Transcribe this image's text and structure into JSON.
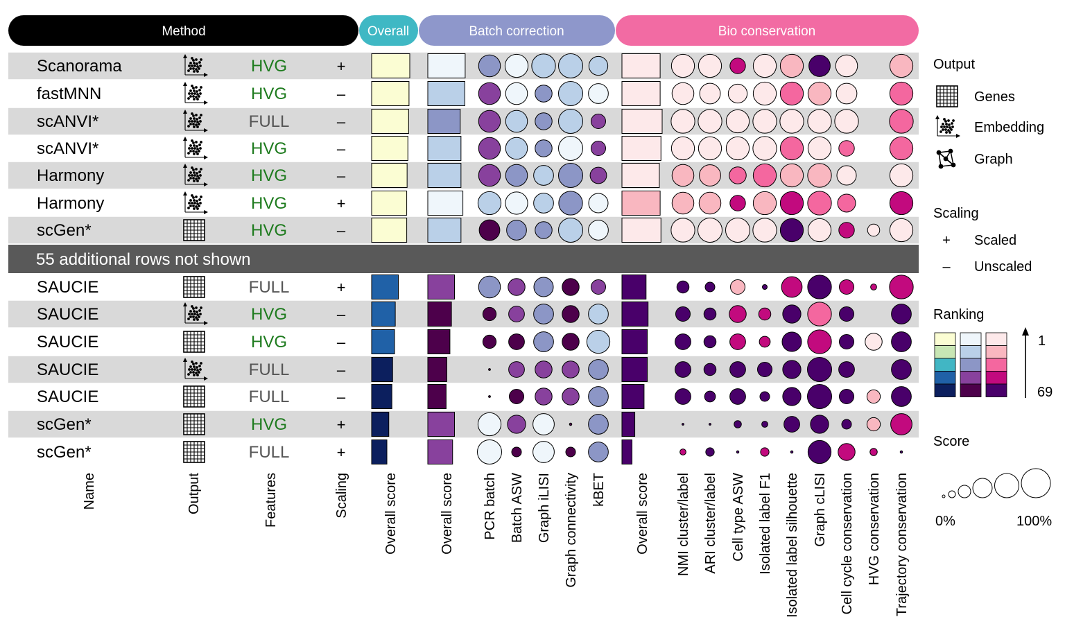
{
  "headers": {
    "method": "Method",
    "overall": "Overall",
    "batch": "Batch correction",
    "bio": "Bio conservation"
  },
  "hidden_rows_label": "55 additional rows not shown",
  "colors": {
    "method_header": "#000000",
    "overall_header": "#3fb8c4",
    "batch_header": "#8e97cb",
    "bio_header": "#f26ba3",
    "row_shade": "#d9d9d9",
    "divider": "#595959",
    "hvg_text": "#1e7b1e",
    "full_text": "#555555",
    "overall_scale": [
      "#fbfdd3",
      "#c8e6b4",
      "#41b6c4",
      "#2061a7",
      "#0c1f5e"
    ],
    "batch_scale": [
      "#eff6fb",
      "#bad0e8",
      "#8c96c6",
      "#88419d",
      "#4d004b"
    ],
    "bio_scale": [
      "#fde9ea",
      "#f9b7c0",
      "#f4679f",
      "#c20a7e",
      "#49006a"
    ]
  },
  "columns": [
    {
      "key": "name",
      "label": "Name"
    },
    {
      "key": "output",
      "label": "Output"
    },
    {
      "key": "features",
      "label": "Features"
    },
    {
      "key": "scaling",
      "label": "Scaling"
    },
    {
      "key": "overall",
      "label": "Overall score"
    },
    {
      "key": "batch_overall",
      "label": "Overall score"
    },
    {
      "key": "pcr_batch",
      "label": "PCR batch"
    },
    {
      "key": "batch_asw",
      "label": "Batch ASW"
    },
    {
      "key": "graph_ilisi",
      "label": "Graph iLISI"
    },
    {
      "key": "graph_connectivity",
      "label": "Graph connectivity"
    },
    {
      "key": "kbet",
      "label": "kBET"
    },
    {
      "key": "bio_overall",
      "label": "Overall score"
    },
    {
      "key": "nmi",
      "label": "NMI cluster/label"
    },
    {
      "key": "ari",
      "label": "ARI cluster/label"
    },
    {
      "key": "cell_type_asw",
      "label": "Cell type ASW"
    },
    {
      "key": "iso_f1",
      "label": "Isolated label F1"
    },
    {
      "key": "iso_sil",
      "label": "Isolated label silhouette"
    },
    {
      "key": "graph_clisi",
      "label": "Graph cLISI"
    },
    {
      "key": "cell_cycle",
      "label": "Cell cycle conservation"
    },
    {
      "key": "hvg_cons",
      "label": "HVG conservation"
    },
    {
      "key": "trajectory",
      "label": "Trajectory conservation"
    }
  ],
  "legend": {
    "output_title": "Output",
    "output_items": [
      {
        "icon": "genes-icon",
        "label": "Genes"
      },
      {
        "icon": "embedding-icon",
        "label": "Embedding"
      },
      {
        "icon": "graph-icon",
        "label": "Graph"
      }
    ],
    "scaling_title": "Scaling",
    "scaling_items": [
      {
        "symbol": "+",
        "label": "Scaled"
      },
      {
        "symbol": "–",
        "label": "Unscaled"
      }
    ],
    "ranking_title": "Ranking",
    "ranking_top": "1",
    "ranking_bottom": "69",
    "score_title": "Score",
    "score_min": "0%",
    "score_max": "100%"
  },
  "chart_data": {
    "type": "table",
    "score_unit": "fraction of maximum (circle size / bar length)",
    "color_encoding": "rank level 0 (best, rank 1) to 4 (worst, rank 69)",
    "rows": [
      {
        "name": "Scanorama",
        "output": "embedding",
        "features": "HVG",
        "scaling": "+",
        "overall": [
          1.0,
          0
        ],
        "batch_overall": [
          0.98,
          0
        ],
        "batch": [
          [
            0.9,
            2
          ],
          [
            0.95,
            0
          ],
          [
            0.98,
            1
          ],
          [
            1.0,
            1
          ],
          [
            0.78,
            1
          ]
        ],
        "bio_overall": [
          0.95,
          0
        ],
        "bio": [
          [
            0.95,
            0
          ],
          [
            0.95,
            0
          ],
          [
            0.64,
            3
          ],
          [
            0.95,
            0
          ],
          [
            0.95,
            1
          ],
          [
            0.88,
            4
          ],
          [
            0.9,
            0
          ],
          null,
          [
            0.95,
            1
          ]
        ]
      },
      {
        "name": "fastMNN",
        "output": "embedding",
        "features": "HVG",
        "scaling": "–",
        "overall": [
          0.98,
          0
        ],
        "batch_overall": [
          0.97,
          1
        ],
        "batch": [
          [
            0.9,
            3
          ],
          [
            0.9,
            0
          ],
          [
            0.7,
            2
          ],
          [
            1.0,
            1
          ],
          [
            0.82,
            0
          ]
        ],
        "bio_overall": [
          0.95,
          0
        ],
        "bio": [
          [
            0.9,
            0
          ],
          [
            0.85,
            0
          ],
          [
            0.78,
            0
          ],
          [
            0.95,
            0
          ],
          [
            0.95,
            2
          ],
          [
            0.95,
            1
          ],
          [
            0.85,
            0
          ],
          null,
          [
            0.95,
            2
          ]
        ]
      },
      {
        "name": "scANVI*",
        "output": "embedding",
        "features": "FULL",
        "scaling": "–",
        "overall": [
          0.97,
          0
        ],
        "batch_overall": [
          0.85,
          2
        ],
        "batch": [
          [
            0.9,
            3
          ],
          [
            0.9,
            1
          ],
          [
            0.7,
            2
          ],
          [
            1.0,
            1
          ],
          [
            0.6,
            3
          ]
        ],
        "bio_overall": [
          1.0,
          0
        ],
        "bio": [
          [
            0.98,
            0
          ],
          [
            0.98,
            0
          ],
          [
            0.95,
            0
          ],
          [
            0.98,
            0
          ],
          [
            0.98,
            0
          ],
          [
            0.98,
            0
          ],
          [
            0.98,
            0
          ],
          null,
          [
            0.98,
            2
          ]
        ]
      },
      {
        "name": "scANVI*",
        "output": "embedding",
        "features": "HVG",
        "scaling": "–",
        "overall": [
          0.95,
          0
        ],
        "batch_overall": [
          0.87,
          1
        ],
        "batch": [
          [
            0.9,
            3
          ],
          [
            0.9,
            1
          ],
          [
            0.7,
            2
          ],
          [
            1.0,
            0
          ],
          [
            0.6,
            3
          ]
        ],
        "bio_overall": [
          0.97,
          0
        ],
        "bio": [
          [
            0.95,
            0
          ],
          [
            0.95,
            0
          ],
          [
            0.95,
            0
          ],
          [
            0.98,
            0
          ],
          [
            0.95,
            2
          ],
          [
            0.95,
            0
          ],
          [
            0.64,
            2
          ],
          null,
          [
            0.95,
            2
          ]
        ]
      },
      {
        "name": "Harmony",
        "output": "embedding",
        "features": "HVG",
        "scaling": "–",
        "overall": [
          0.93,
          0
        ],
        "batch_overall": [
          0.87,
          1
        ],
        "batch": [
          [
            0.9,
            3
          ],
          [
            0.9,
            2
          ],
          [
            0.82,
            1
          ],
          [
            1.0,
            2
          ],
          [
            0.68,
            3
          ]
        ],
        "bio_overall": [
          0.93,
          0
        ],
        "bio": [
          [
            0.9,
            1
          ],
          [
            0.88,
            1
          ],
          [
            0.7,
            2
          ],
          [
            0.95,
            2
          ],
          [
            0.95,
            1
          ],
          [
            0.98,
            1
          ],
          [
            0.8,
            0
          ],
          null,
          [
            0.95,
            0
          ]
        ]
      },
      {
        "name": "Harmony",
        "output": "embedding",
        "features": "HVG",
        "scaling": "+",
        "overall": [
          0.92,
          0
        ],
        "batch_overall": [
          0.92,
          0
        ],
        "batch": [
          [
            0.95,
            1
          ],
          [
            0.92,
            0
          ],
          [
            0.82,
            1
          ],
          [
            0.98,
            2
          ],
          [
            0.8,
            0
          ]
        ],
        "bio_overall": [
          0.95,
          1
        ],
        "bio": [
          [
            0.9,
            1
          ],
          [
            0.9,
            1
          ],
          [
            0.64,
            3
          ],
          [
            0.95,
            1
          ],
          [
            0.95,
            3
          ],
          [
            0.98,
            2
          ],
          [
            0.74,
            2
          ],
          null,
          [
            0.95,
            3
          ]
        ]
      },
      {
        "name": "scGen*",
        "output": "genes",
        "features": "HVG",
        "scaling": "–",
        "overall": [
          0.92,
          0
        ],
        "batch_overall": [
          0.87,
          1
        ],
        "batch": [
          [
            0.85,
            4
          ],
          [
            0.82,
            2
          ],
          [
            0.7,
            2
          ],
          [
            1.0,
            1
          ],
          [
            0.82,
            0
          ]
        ],
        "bio_overall": [
          0.97,
          0
        ],
        "bio": [
          [
            0.98,
            0
          ],
          [
            1.0,
            0
          ],
          [
            1.0,
            0
          ],
          [
            0.98,
            0
          ],
          [
            0.95,
            4
          ],
          [
            0.95,
            0
          ],
          [
            0.64,
            3
          ],
          [
            0.5,
            0
          ],
          [
            0.95,
            0
          ]
        ]
      },
      {
        "name": "SAUCIE",
        "output": "genes",
        "features": "FULL",
        "scaling": "+",
        "overall": [
          0.7,
          3
        ],
        "batch_overall": [
          0.7,
          3
        ],
        "batch": [
          [
            0.9,
            2
          ],
          [
            0.7,
            3
          ],
          [
            0.8,
            2
          ],
          [
            0.7,
            4
          ],
          [
            0.6,
            3
          ]
        ],
        "bio_overall": [
          0.6,
          4
        ],
        "bio": [
          [
            0.5,
            4
          ],
          [
            0.4,
            4
          ],
          [
            0.6,
            1
          ],
          [
            0.2,
            4
          ],
          [
            0.85,
            3
          ],
          [
            0.98,
            4
          ],
          [
            0.6,
            3
          ],
          [
            0.25,
            3
          ],
          [
            0.98,
            3
          ]
        ]
      },
      {
        "name": "SAUCIE",
        "output": "embedding",
        "features": "HVG",
        "scaling": "–",
        "overall": [
          0.62,
          3
        ],
        "batch_overall": [
          0.62,
          4
        ],
        "batch": [
          [
            0.55,
            4
          ],
          [
            0.65,
            3
          ],
          [
            0.82,
            2
          ],
          [
            0.7,
            4
          ],
          [
            0.82,
            1
          ]
        ],
        "bio_overall": [
          0.65,
          4
        ],
        "bio": [
          [
            0.6,
            4
          ],
          [
            0.5,
            4
          ],
          [
            0.7,
            3
          ],
          [
            0.5,
            3
          ],
          [
            0.75,
            4
          ],
          [
            0.98,
            2
          ],
          [
            0.6,
            4
          ],
          null,
          [
            0.82,
            4
          ]
        ]
      },
      {
        "name": "SAUCIE",
        "output": "genes",
        "features": "HVG",
        "scaling": "–",
        "overall": [
          0.6,
          3
        ],
        "batch_overall": [
          0.58,
          4
        ],
        "batch": [
          [
            0.55,
            4
          ],
          [
            0.65,
            4
          ],
          [
            0.82,
            2
          ],
          [
            0.7,
            4
          ],
          [
            0.95,
            1
          ]
        ],
        "bio_overall": [
          0.63,
          4
        ],
        "bio": [
          [
            0.65,
            4
          ],
          [
            0.5,
            4
          ],
          [
            0.65,
            3
          ],
          [
            0.45,
            3
          ],
          [
            0.8,
            4
          ],
          [
            0.98,
            3
          ],
          [
            0.6,
            4
          ],
          [
            0.7,
            0
          ],
          [
            0.82,
            4
          ]
        ]
      },
      {
        "name": "SAUCIE",
        "output": "embedding",
        "features": "FULL",
        "scaling": "–",
        "overall": [
          0.55,
          4
        ],
        "batch_overall": [
          0.5,
          4
        ],
        "batch": [
          [
            0.08,
            4
          ],
          [
            0.65,
            3
          ],
          [
            0.7,
            3
          ],
          [
            0.7,
            3
          ],
          [
            0.82,
            2
          ]
        ],
        "bio_overall": [
          0.63,
          4
        ],
        "bio": [
          [
            0.65,
            4
          ],
          [
            0.5,
            4
          ],
          [
            0.65,
            4
          ],
          [
            0.6,
            4
          ],
          [
            0.75,
            4
          ],
          [
            1.0,
            4
          ],
          [
            0.65,
            4
          ],
          null,
          [
            0.82,
            4
          ]
        ]
      },
      {
        "name": "SAUCIE",
        "output": "genes",
        "features": "FULL",
        "scaling": "–",
        "overall": [
          0.53,
          4
        ],
        "batch_overall": [
          0.48,
          4
        ],
        "batch": [
          [
            0.08,
            4
          ],
          [
            0.6,
            4
          ],
          [
            0.7,
            3
          ],
          [
            0.7,
            3
          ],
          [
            0.82,
            2
          ]
        ],
        "bio_overall": [
          0.55,
          4
        ],
        "bio": [
          [
            0.65,
            4
          ],
          [
            0.45,
            4
          ],
          [
            0.65,
            4
          ],
          [
            0.4,
            4
          ],
          [
            0.75,
            4
          ],
          [
            1.0,
            4
          ],
          [
            0.6,
            4
          ],
          [
            0.55,
            1
          ],
          [
            0.82,
            4
          ]
        ]
      },
      {
        "name": "scGen*",
        "output": "genes",
        "features": "HVG",
        "scaling": "+",
        "overall": [
          0.45,
          4
        ],
        "batch_overall": [
          0.7,
          3
        ],
        "batch": [
          [
            0.95,
            0
          ],
          [
            0.75,
            3
          ],
          [
            0.88,
            0
          ],
          [
            0.1,
            4
          ],
          [
            0.82,
            2
          ]
        ],
        "bio_overall": [
          0.32,
          4
        ],
        "bio": [
          [
            0.08,
            4
          ],
          [
            0.08,
            4
          ],
          [
            0.3,
            4
          ],
          [
            0.25,
            4
          ],
          [
            0.65,
            4
          ],
          [
            0.75,
            4
          ],
          [
            0.4,
            4
          ],
          [
            0.55,
            1
          ],
          [
            0.88,
            3
          ]
        ]
      },
      {
        "name": "scGen*",
        "output": "genes",
        "features": "FULL",
        "scaling": "+",
        "overall": [
          0.4,
          4
        ],
        "batch_overall": [
          0.65,
          3
        ],
        "batch": [
          [
            1.0,
            0
          ],
          [
            0.4,
            4
          ],
          [
            0.88,
            0
          ],
          [
            0.4,
            4
          ],
          [
            0.82,
            2
          ]
        ],
        "bio_overall": [
          0.25,
          4
        ],
        "bio": [
          [
            0.25,
            3
          ],
          [
            0.35,
            4
          ],
          [
            0.1,
            4
          ],
          [
            0.35,
            3
          ],
          [
            0.1,
            4
          ],
          [
            0.95,
            4
          ],
          [
            0.7,
            3
          ],
          [
            0.3,
            3
          ],
          [
            0.1,
            4
          ]
        ]
      }
    ]
  }
}
